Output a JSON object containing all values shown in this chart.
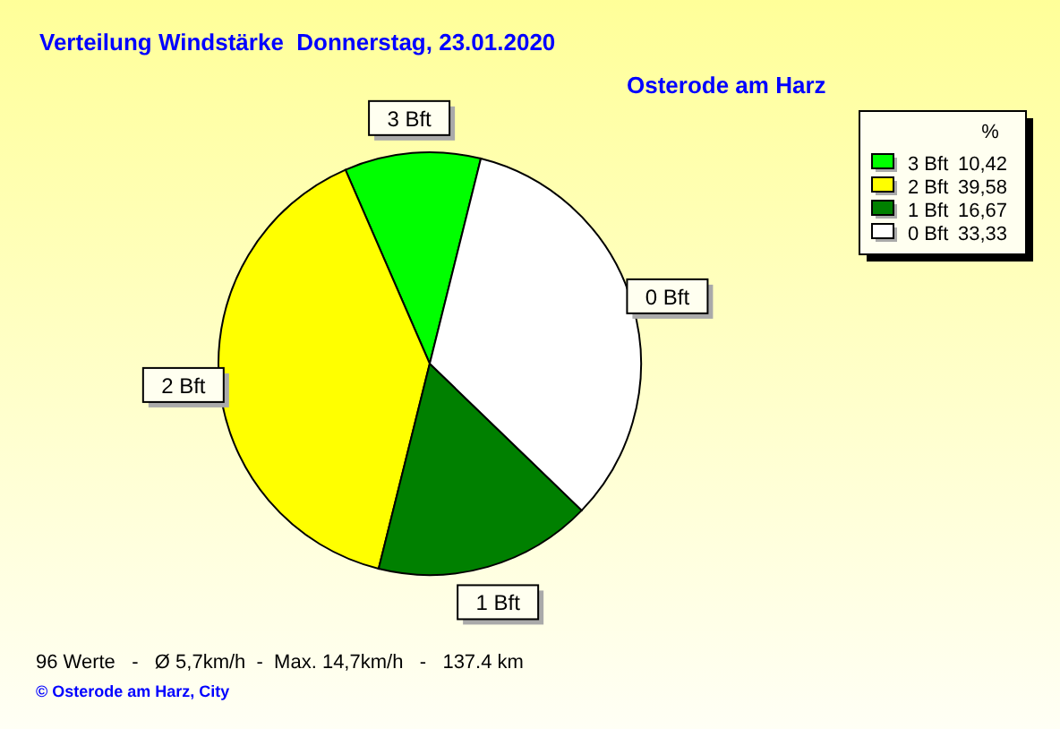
{
  "chart_data": {
    "type": "pie",
    "title": "Verteilung Windstärke  Donnerstag, 23.01.2020",
    "subtitle": "Osterode am Harz",
    "categories": [
      "3 Bft",
      "2 Bft",
      "1 Bft",
      "0 Bft"
    ],
    "values": [
      10.42,
      39.58,
      16.67,
      33.33
    ],
    "colors": [
      "#00ff00",
      "#ffff00",
      "#008000",
      "#ffffff"
    ],
    "value_labels": [
      "10,42",
      "39,58",
      "16,67",
      "33,33"
    ],
    "legend": "top right",
    "legend_title": "%",
    "annotations": [
      "96 Werte   -   Ø 5,7km/h  -  Max. 14,7km/h   -   137.4 km",
      "© Osterode am Harz, City"
    ]
  }
}
